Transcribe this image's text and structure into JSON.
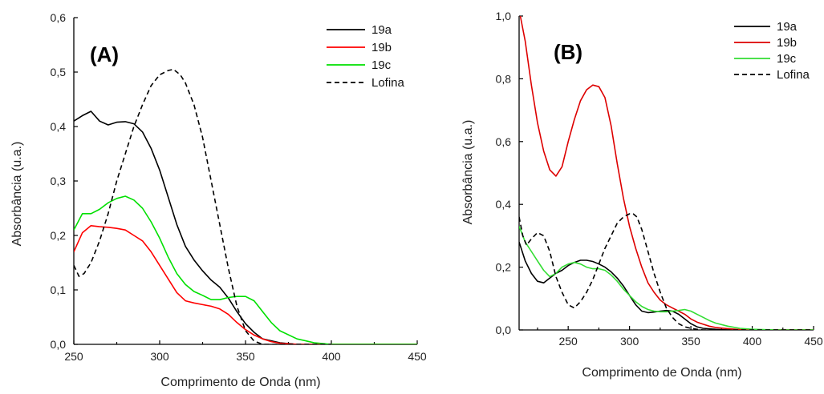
{
  "chart_data": [
    {
      "type": "line",
      "panel_label": "(A)",
      "xlabel": "Comprimento de Onda (nm)",
      "ylabel": "Absorbância (u.a.)",
      "xlim": [
        250,
        450
      ],
      "ylim": [
        0.0,
        0.6
      ],
      "xticks": [
        250,
        300,
        350,
        400,
        450
      ],
      "yticks": [
        0.0,
        0.1,
        0.2,
        0.3,
        0.4,
        0.5,
        0.6
      ],
      "ytick_labels": [
        "0,0",
        "0,1",
        "0,2",
        "0,3",
        "0,4",
        "0,5",
        "0,6"
      ],
      "legend_position": "top-right",
      "series": [
        {
          "name": "19a",
          "color": "#000000",
          "dash": false,
          "x": [
            250,
            255,
            260,
            265,
            270,
            275,
            280,
            285,
            290,
            295,
            300,
            305,
            310,
            315,
            320,
            325,
            330,
            335,
            340,
            345,
            350,
            355,
            360,
            370,
            380,
            400,
            450
          ],
          "y": [
            0.41,
            0.42,
            0.428,
            0.41,
            0.403,
            0.408,
            0.409,
            0.405,
            0.39,
            0.36,
            0.32,
            0.27,
            0.22,
            0.18,
            0.155,
            0.135,
            0.118,
            0.105,
            0.085,
            0.06,
            0.038,
            0.022,
            0.01,
            0.003,
            0.0,
            0.0,
            0.0
          ]
        },
        {
          "name": "19b",
          "color": "#ff0000",
          "dash": false,
          "x": [
            250,
            255,
            260,
            265,
            270,
            275,
            280,
            285,
            290,
            295,
            300,
            305,
            310,
            315,
            320,
            325,
            330,
            335,
            340,
            345,
            350,
            355,
            360,
            365,
            370,
            380,
            400,
            450
          ],
          "y": [
            0.17,
            0.205,
            0.218,
            0.216,
            0.215,
            0.213,
            0.21,
            0.2,
            0.19,
            0.17,
            0.145,
            0.12,
            0.095,
            0.08,
            0.076,
            0.073,
            0.07,
            0.065,
            0.055,
            0.04,
            0.027,
            0.017,
            0.01,
            0.005,
            0.002,
            0.0,
            0.0,
            0.0
          ]
        },
        {
          "name": "19c",
          "color": "#00e000",
          "dash": false,
          "x": [
            250,
            255,
            260,
            265,
            270,
            275,
            280,
            285,
            290,
            295,
            300,
            305,
            310,
            315,
            320,
            325,
            330,
            335,
            340,
            345,
            350,
            355,
            360,
            365,
            370,
            380,
            390,
            400,
            450
          ],
          "y": [
            0.21,
            0.24,
            0.24,
            0.248,
            0.26,
            0.268,
            0.272,
            0.265,
            0.25,
            0.225,
            0.195,
            0.16,
            0.13,
            0.11,
            0.097,
            0.09,
            0.082,
            0.082,
            0.086,
            0.088,
            0.088,
            0.08,
            0.06,
            0.04,
            0.025,
            0.01,
            0.003,
            0.0,
            0.0
          ]
        },
        {
          "name": "Lofina",
          "color": "#000000",
          "dash": true,
          "x": [
            250,
            253,
            256,
            260,
            265,
            270,
            275,
            280,
            285,
            290,
            295,
            300,
            305,
            308,
            312,
            315,
            320,
            325,
            330,
            335,
            340,
            345,
            350,
            355,
            360,
            370,
            400
          ],
          "y": [
            0.145,
            0.125,
            0.13,
            0.15,
            0.19,
            0.24,
            0.3,
            0.35,
            0.4,
            0.44,
            0.475,
            0.495,
            0.503,
            0.505,
            0.495,
            0.48,
            0.44,
            0.38,
            0.3,
            0.22,
            0.14,
            0.07,
            0.025,
            0.006,
            0.0,
            0.0,
            0.0
          ]
        }
      ]
    },
    {
      "type": "line",
      "panel_label": "(B)",
      "xlabel": "Comprimento de Onda (nm)",
      "ylabel": "Absorbância (u.a.)",
      "xlim": [
        210,
        450
      ],
      "ylim": [
        0.0,
        1.0
      ],
      "xticks": [
        250,
        300,
        350,
        400,
        450
      ],
      "yticks": [
        0.0,
        0.2,
        0.4,
        0.6,
        0.8,
        1.0
      ],
      "ytick_labels": [
        "0,0",
        "0,2",
        "0,4",
        "0,6",
        "0,8",
        "1,0"
      ],
      "legend_position": "top-right",
      "series": [
        {
          "name": "19a",
          "color": "#000000",
          "dash": false,
          "x": [
            210,
            215,
            220,
            225,
            230,
            235,
            240,
            245,
            250,
            255,
            260,
            265,
            270,
            275,
            280,
            285,
            290,
            295,
            300,
            305,
            310,
            315,
            320,
            325,
            330,
            335,
            340,
            345,
            350,
            355,
            360,
            370,
            380,
            400,
            450
          ],
          "y": [
            0.28,
            0.22,
            0.18,
            0.155,
            0.15,
            0.165,
            0.18,
            0.19,
            0.205,
            0.215,
            0.222,
            0.222,
            0.218,
            0.21,
            0.2,
            0.185,
            0.165,
            0.14,
            0.11,
            0.08,
            0.06,
            0.055,
            0.057,
            0.06,
            0.062,
            0.06,
            0.05,
            0.035,
            0.02,
            0.01,
            0.005,
            0.002,
            0.0,
            0.0,
            0.0
          ]
        },
        {
          "name": "19b",
          "color": "#dd0000",
          "dash": false,
          "x": [
            211,
            215,
            220,
            225,
            230,
            235,
            240,
            245,
            250,
            255,
            260,
            265,
            270,
            275,
            280,
            285,
            290,
            295,
            300,
            305,
            310,
            315,
            320,
            325,
            330,
            335,
            340,
            345,
            350,
            355,
            360,
            365,
            370,
            380,
            390,
            400,
            450
          ],
          "y": [
            1.0,
            0.92,
            0.78,
            0.66,
            0.57,
            0.51,
            0.49,
            0.52,
            0.6,
            0.67,
            0.73,
            0.765,
            0.78,
            0.775,
            0.74,
            0.65,
            0.53,
            0.42,
            0.33,
            0.26,
            0.2,
            0.15,
            0.12,
            0.095,
            0.08,
            0.07,
            0.06,
            0.05,
            0.035,
            0.025,
            0.018,
            0.012,
            0.008,
            0.004,
            0.001,
            0.0,
            0.0
          ]
        },
        {
          "name": "19c",
          "color": "#33dd33",
          "dash": false,
          "x": [
            210,
            215,
            220,
            225,
            230,
            235,
            240,
            245,
            250,
            255,
            260,
            265,
            270,
            275,
            280,
            285,
            290,
            295,
            300,
            305,
            310,
            315,
            320,
            325,
            330,
            335,
            340,
            345,
            350,
            355,
            360,
            365,
            370,
            380,
            390,
            400,
            420,
            450
          ],
          "y": [
            0.33,
            0.28,
            0.25,
            0.22,
            0.19,
            0.17,
            0.18,
            0.2,
            0.21,
            0.215,
            0.21,
            0.2,
            0.195,
            0.195,
            0.19,
            0.175,
            0.155,
            0.13,
            0.11,
            0.09,
            0.075,
            0.065,
            0.06,
            0.058,
            0.058,
            0.06,
            0.062,
            0.065,
            0.06,
            0.05,
            0.04,
            0.03,
            0.022,
            0.012,
            0.005,
            0.002,
            0.0,
            0.0
          ]
        },
        {
          "name": "Lofina",
          "color": "#000000",
          "dash": true,
          "x": [
            210,
            213,
            216,
            220,
            225,
            230,
            235,
            240,
            245,
            250,
            255,
            260,
            265,
            270,
            275,
            280,
            285,
            290,
            295,
            300,
            303,
            306,
            310,
            315,
            320,
            325,
            330,
            335,
            340,
            345,
            350,
            355,
            360,
            370,
            400,
            450
          ],
          "y": [
            0.36,
            0.3,
            0.27,
            0.29,
            0.31,
            0.3,
            0.25,
            0.17,
            0.12,
            0.08,
            0.07,
            0.09,
            0.12,
            0.16,
            0.21,
            0.26,
            0.3,
            0.34,
            0.36,
            0.37,
            0.37,
            0.36,
            0.32,
            0.25,
            0.18,
            0.12,
            0.07,
            0.04,
            0.02,
            0.01,
            0.005,
            0.002,
            0.0,
            0.0,
            0.0,
            0.0
          ]
        }
      ]
    }
  ]
}
